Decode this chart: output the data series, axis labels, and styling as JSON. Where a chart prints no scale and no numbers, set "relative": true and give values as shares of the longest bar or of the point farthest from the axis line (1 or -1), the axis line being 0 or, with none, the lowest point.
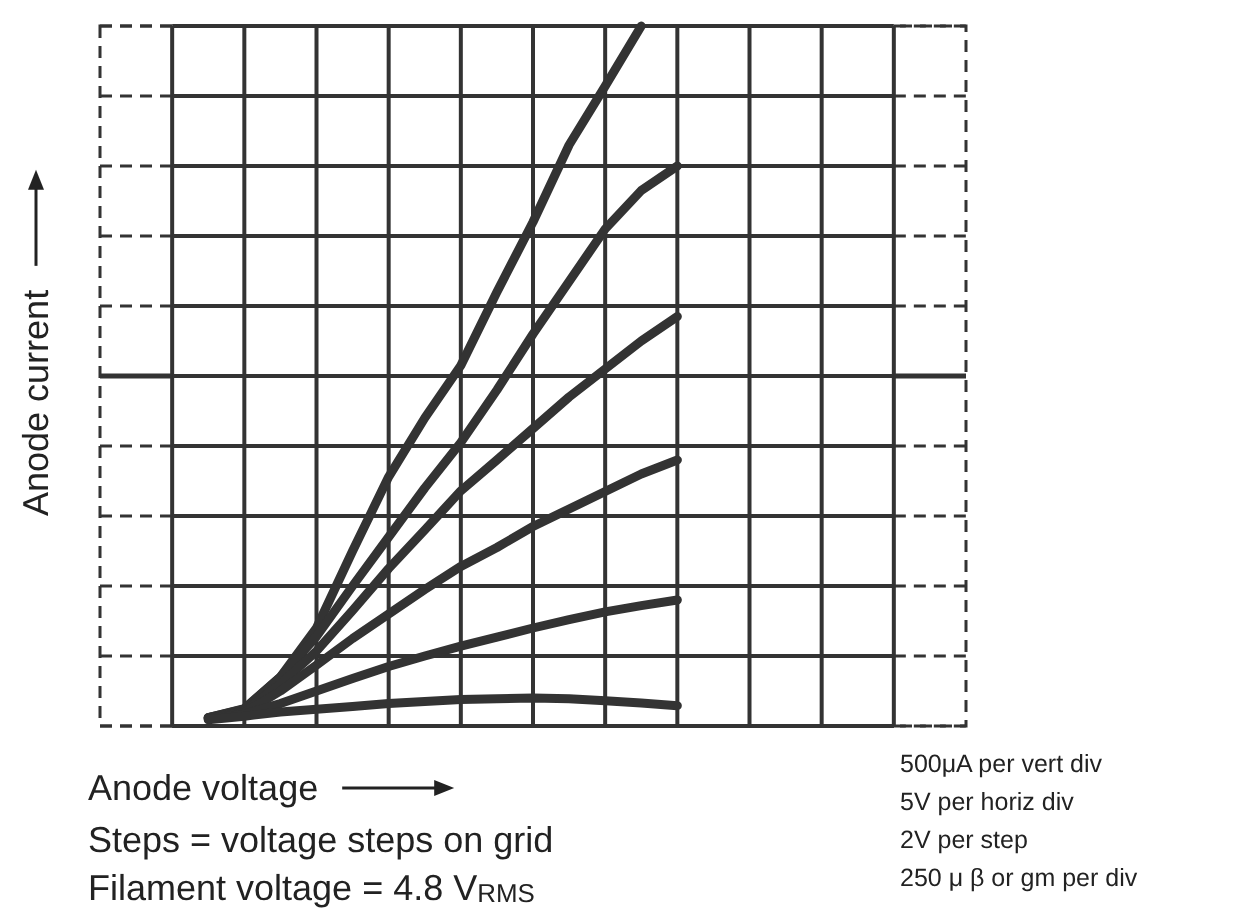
{
  "chart_data": {
    "type": "line",
    "relative": true,
    "xlabel": "Anode voltage",
    "ylabel": "Anode current",
    "categories": [
      null,
      null,
      null,
      null,
      null,
      null,
      null,
      null,
      null,
      null,
      null,
      null,
      null,
      null,
      null,
      null,
      null,
      null,
      null,
      null,
      null
    ],
    "grid": true,
    "marker": "none",
    "line_style": "solid",
    "series": [
      {
        "color": "#333333",
        "values": [
          null,
          0.012,
          0.025,
          0.07,
          0.14,
          0.25,
          0.356,
          0.44,
          0.515,
          0.62,
          0.72,
          0.83,
          0.914,
          1.0,
          null,
          null,
          null,
          null,
          null,
          null,
          null
        ]
      },
      {
        "color": "#333333",
        "values": [
          null,
          0.012,
          0.024,
          0.07,
          0.128,
          0.2,
          0.27,
          0.34,
          0.405,
          0.48,
          0.56,
          0.635,
          0.71,
          0.765,
          0.8,
          null,
          null,
          null,
          null,
          null,
          null
        ]
      },
      {
        "color": "#333333",
        "values": [
          null,
          0.012,
          0.021,
          0.06,
          0.107,
          0.165,
          0.225,
          0.28,
          0.336,
          0.38,
          0.425,
          0.47,
          0.51,
          0.55,
          0.585,
          null,
          null,
          null,
          null,
          null,
          null
        ]
      },
      {
        "color": "#333333",
        "values": [
          null,
          0.011,
          0.019,
          0.05,
          0.087,
          0.125,
          0.16,
          0.195,
          0.228,
          0.255,
          0.285,
          0.31,
          0.335,
          0.36,
          0.38,
          null,
          null,
          null,
          null,
          null,
          null
        ]
      },
      {
        "color": "#333333",
        "values": [
          null,
          0.01,
          0.017,
          0.032,
          0.05,
          0.068,
          0.085,
          0.1,
          0.114,
          0.127,
          0.14,
          0.152,
          0.163,
          0.172,
          0.18,
          null,
          null,
          null,
          null,
          null,
          null
        ]
      },
      {
        "color": "#333333",
        "values": [
          null,
          0.009,
          0.014,
          0.02,
          0.024,
          0.028,
          0.032,
          0.035,
          0.038,
          0.039,
          0.04,
          0.039,
          0.036,
          0.033,
          0.029,
          null,
          null,
          null,
          null,
          null,
          null
        ]
      }
    ],
    "annotations": [
      "Steps = voltage steps on grid",
      "Filament voltage = 4.8 V$_{RMS}$",
      "500μA per vert div",
      "5V per horiz div",
      "2V per step",
      "250 μ  β or gm per div"
    ]
  }
}
